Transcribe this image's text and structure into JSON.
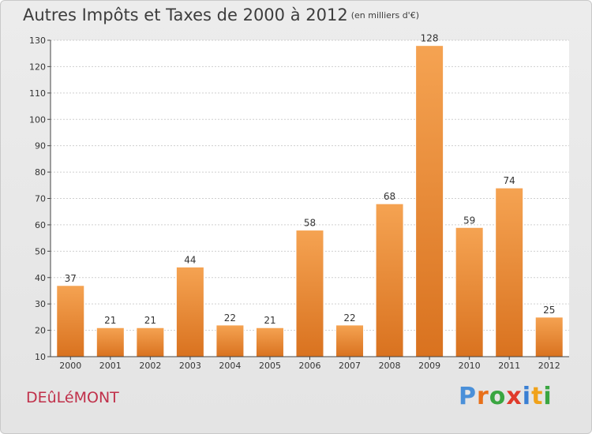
{
  "header": {
    "title": "Autres Impôts et Taxes de 2000 à 2012",
    "subtitle": "(en milliers d'€)"
  },
  "footer": {
    "commune": "DEûLéMONT",
    "logo_letters": [
      "P",
      "r",
      "o",
      "x",
      "i",
      "t",
      "i"
    ],
    "logo_colors": [
      "#4a90d9",
      "#e8701a",
      "#3aa641",
      "#e03a2b",
      "#3a7fd3",
      "#f0a21a",
      "#3aa641"
    ]
  },
  "colors": {
    "bar_top": "#f5a352",
    "bar_bottom": "#d9721f",
    "bar_border": "#ffffff",
    "grid": "#cfcfcf",
    "axis": "#444444"
  },
  "chart_data": {
    "type": "bar",
    "title": "Autres Impôts et Taxes de 2000 à 2012",
    "subtitle": "(en milliers d'€)",
    "categories": [
      "2000",
      "2001",
      "2002",
      "2003",
      "2004",
      "2005",
      "2006",
      "2007",
      "2008",
      "2009",
      "2010",
      "2011",
      "2012"
    ],
    "values": [
      37,
      21,
      21,
      44,
      22,
      21,
      58,
      22,
      68,
      128,
      59,
      74,
      25
    ],
    "ylim": [
      10,
      130
    ],
    "yticks": [
      10,
      20,
      30,
      40,
      50,
      60,
      70,
      80,
      90,
      100,
      110,
      120,
      130
    ],
    "xlabel": "",
    "ylabel": "",
    "grid": true,
    "data_labels": true
  }
}
